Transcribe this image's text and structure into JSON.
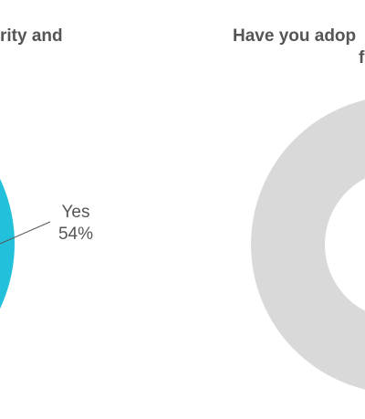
{
  "chart_data": [
    {
      "type": "pie",
      "title": "rity and",
      "slices": [
        {
          "label": "Yes",
          "value": 54,
          "value_label": "54%",
          "color": "#23c0db"
        }
      ]
    },
    {
      "type": "donut",
      "title": "Have you adop",
      "title_line2": "f",
      "slices": [
        {
          "label": "",
          "value": 100,
          "color": "#d9d9d9"
        }
      ]
    }
  ]
}
